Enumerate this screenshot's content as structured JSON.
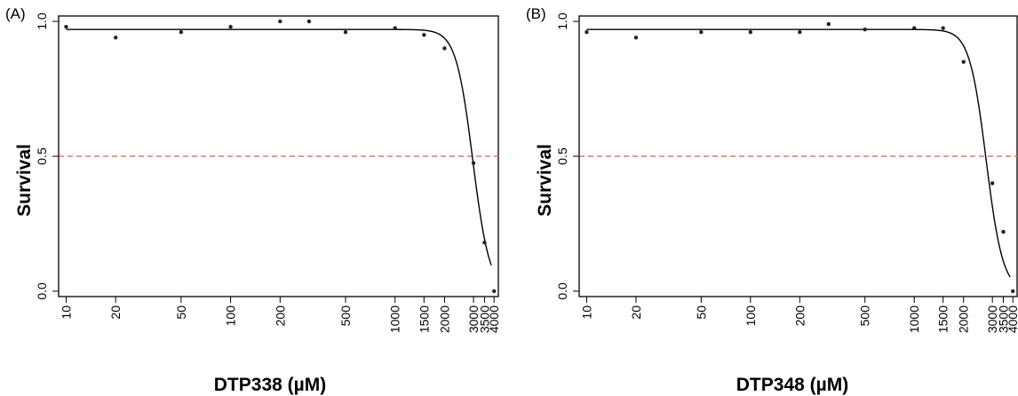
{
  "chart_data": [
    {
      "type": "scatter",
      "panel_label": "(A)",
      "xlabel": "DTP338 (µM)",
      "ylabel": "Survival",
      "x_scale": "log",
      "xlim": [
        9,
        4300
      ],
      "ylim": [
        -0.02,
        1.02
      ],
      "x_ticks": [
        10,
        20,
        50,
        100,
        200,
        500,
        1000,
        1500,
        2000,
        3000,
        3500,
        4000
      ],
      "x_tick_labels": [
        "10",
        "20",
        "50",
        "100",
        "200",
        "500",
        "1000",
        "1500",
        "2000",
        "3000",
        "3500",
        "4000"
      ],
      "y_ticks": [
        0.0,
        0.5,
        1.0
      ],
      "y_tick_labels": [
        "0.0",
        "0.5",
        "1.0"
      ],
      "reference_line": {
        "y": 0.5,
        "color": "#e8534f",
        "style": "dashed"
      },
      "points": {
        "x": [
          10,
          20,
          50,
          100,
          200,
          300,
          500,
          1000,
          1500,
          2000,
          3000,
          3500,
          4000
        ],
        "y": [
          0.98,
          0.94,
          0.96,
          0.98,
          1.0,
          1.0,
          0.96,
          0.975,
          0.95,
          0.9,
          0.475,
          0.18,
          0.0
        ]
      },
      "fit_curve": {
        "type": "log-logistic",
        "top": 0.97,
        "bottom": 0.0,
        "ec50": 2970,
        "hill": 8.5,
        "x_range": [
          10,
          3850
        ]
      },
      "grid": false
    },
    {
      "type": "scatter",
      "panel_label": "(B)",
      "xlabel": "DTP348 (µM)",
      "ylabel": "Survival",
      "x_scale": "log",
      "xlim": [
        9,
        4300
      ],
      "ylim": [
        -0.02,
        1.02
      ],
      "x_ticks": [
        10,
        20,
        50,
        100,
        200,
        500,
        1000,
        1500,
        2000,
        3000,
        3500,
        4000
      ],
      "x_tick_labels": [
        "10",
        "20",
        "50",
        "100",
        "200",
        "500",
        "1000",
        "1500",
        "2000",
        "3000",
        "3500",
        "4000"
      ],
      "y_ticks": [
        0.0,
        0.5,
        1.0
      ],
      "y_tick_labels": [
        "0.0",
        "0.5",
        "1.0"
      ],
      "reference_line": {
        "y": 0.5,
        "color": "#e8534f",
        "style": "dashed"
      },
      "points": {
        "x": [
          10,
          20,
          50,
          100,
          200,
          300,
          500,
          1000,
          1500,
          2000,
          3000,
          3500,
          4000
        ],
        "y": [
          0.96,
          0.94,
          0.96,
          0.96,
          0.96,
          0.99,
          0.97,
          0.975,
          0.975,
          0.85,
          0.4,
          0.22,
          0.0
        ]
      },
      "fit_curve": {
        "type": "log-logistic",
        "top": 0.97,
        "bottom": 0.0,
        "ec50": 2750,
        "hill": 8.5,
        "x_range": [
          10,
          3850
        ]
      },
      "grid": false
    }
  ]
}
